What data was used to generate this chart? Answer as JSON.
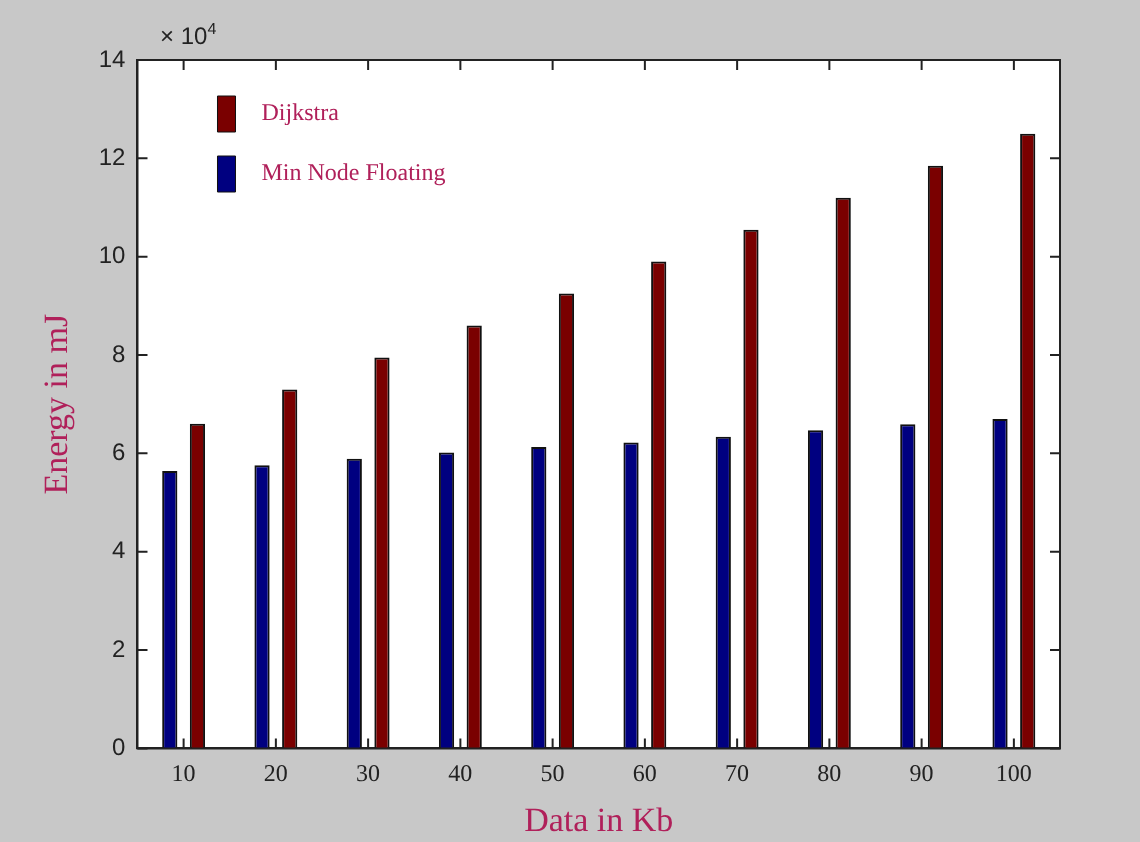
{
  "chart_data": {
    "type": "bar",
    "xlabel": "Data in Kb",
    "ylabel": "Energy in mJ",
    "categories": [
      "10",
      "20",
      "30",
      "40",
      "50",
      "60",
      "70",
      "80",
      "90",
      "100"
    ],
    "series": [
      {
        "name": "Min Node Floating",
        "color": "#000080",
        "values": [
          5.64,
          5.76,
          5.89,
          6.02,
          6.13,
          6.22,
          6.34,
          6.47,
          6.59,
          6.7
        ]
      },
      {
        "name": "Dijkstra",
        "color": "#7a0000",
        "values": [
          6.6,
          7.3,
          7.95,
          8.6,
          9.25,
          9.9,
          10.55,
          11.2,
          11.85,
          12.5
        ]
      }
    ],
    "ylim": [
      0,
      14
    ],
    "yticks": [
      0,
      2,
      4,
      6,
      8,
      10,
      12,
      14
    ],
    "grid": false,
    "legend": "top left",
    "annotations": [
      "× 10$^{4}$"
    ]
  }
}
